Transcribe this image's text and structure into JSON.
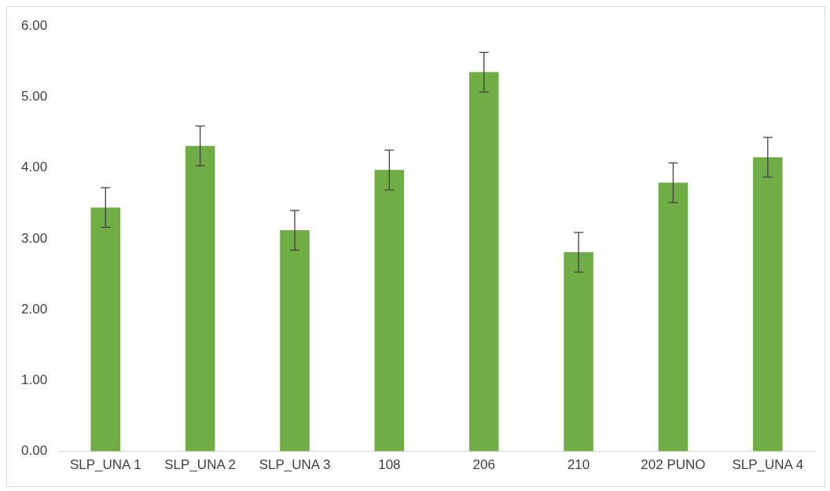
{
  "chart_data": {
    "type": "bar",
    "categories": [
      "SLP_UNA 1",
      "SLP_UNA 2",
      "SLP_UNA 3",
      "108",
      "206",
      "210",
      "202 PUNO",
      "SLP_UNA 4"
    ],
    "values": [
      3.44,
      4.31,
      3.12,
      3.97,
      5.35,
      2.81,
      3.79,
      4.15
    ],
    "errors": [
      0.28,
      0.28,
      0.28,
      0.28,
      0.28,
      0.28,
      0.28,
      0.28
    ],
    "color": "#70ad47",
    "ylim": [
      0,
      6
    ],
    "yticks": [
      {
        "value": 0,
        "label": "0.00"
      },
      {
        "value": 1,
        "label": "1.00"
      },
      {
        "value": 2,
        "label": "2.00"
      },
      {
        "value": 3,
        "label": "3.00"
      },
      {
        "value": 4,
        "label": "4.00"
      },
      {
        "value": 5,
        "label": "5.00"
      },
      {
        "value": 6,
        "label": "6.00"
      }
    ],
    "grid": false,
    "legend": false
  }
}
